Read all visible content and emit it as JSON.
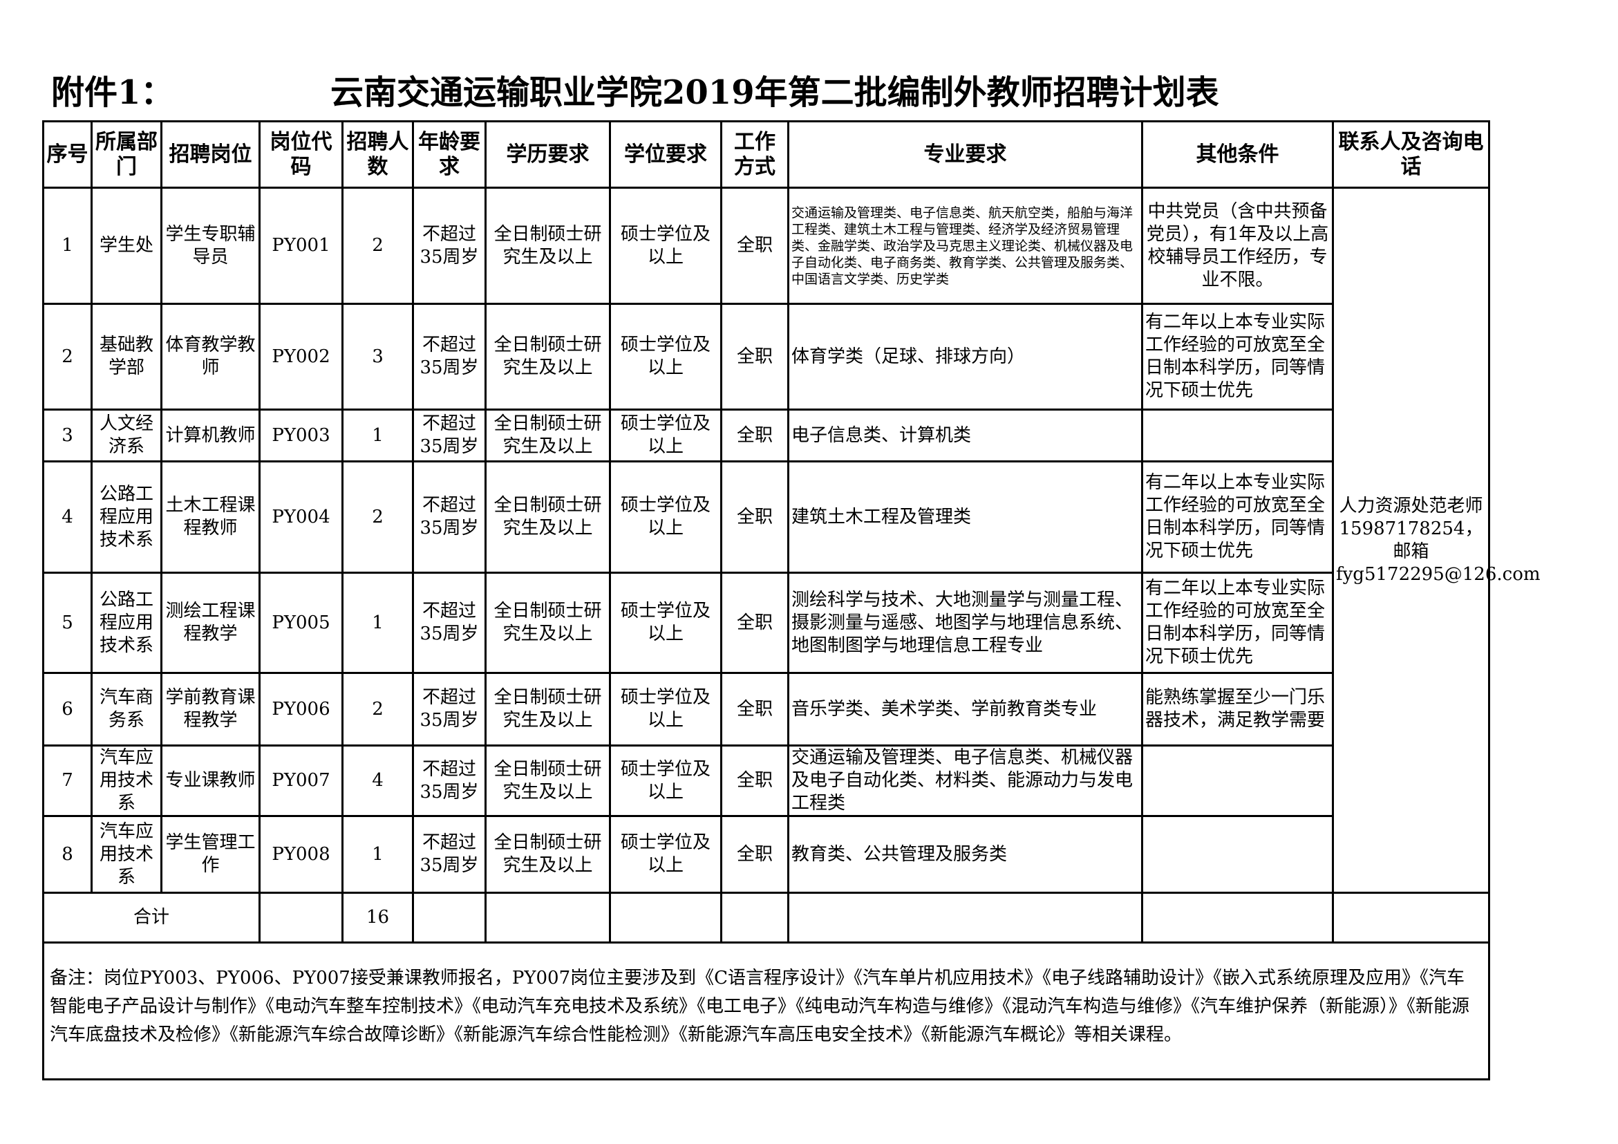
{
  "header": {
    "label": "附件1：",
    "title": "云南交通运输职业学院2019年第二批编制外教师招聘计划表"
  },
  "columns": [
    "序号",
    "所属部门",
    "招聘岗位",
    "岗位代码",
    "招聘人数",
    "年龄要求",
    "学历要求",
    "学位要求",
    "工作方式",
    "专业要求",
    "其他条件",
    "联系人及咨询电话"
  ],
  "rows": [
    {
      "no": "1",
      "dept": "学生处",
      "post": "学生专职辅导员",
      "code": "PY001",
      "count": "2",
      "age": "不超过35周岁",
      "edu": "全日制硕士研究生及以上",
      "degree": "硕士学位及以上",
      "mode": "全职",
      "major": "交通运输及管理类、电子信息类、航天航空类，船舶与海洋工程类、建筑土木工程与管理类、经济学及经济贸易管理类、金融学类、政治学及马克思主义理论类、机械仪器及电子自动化类、电子商务类、教育学类、公共管理及服务类、中国语言文学类、历史学类",
      "other": "中共党员（含中共预备党员），有1年及以上高校辅导员工作经历，专业不限。"
    },
    {
      "no": "2",
      "dept": "基础教学部",
      "post": "体育教学教师",
      "code": "PY002",
      "count": "3",
      "age": "不超过35周岁",
      "edu": "全日制硕士研究生及以上",
      "degree": "硕士学位及以上",
      "mode": "全职",
      "major": "体育学类（足球、排球方向）",
      "other": "有二年以上本专业实际工作经验的可放宽至全日制本科学历，同等情况下硕士优先"
    },
    {
      "no": "3",
      "dept": "人文经济系",
      "post": "计算机教师",
      "code": "PY003",
      "count": "1",
      "age": "不超过35周岁",
      "edu": "全日制硕士研究生及以上",
      "degree": "硕士学位及以上",
      "mode": "全职",
      "major": "电子信息类、计算机类",
      "other": ""
    },
    {
      "no": "4",
      "dept": "公路工程应用技术系",
      "post": "土木工程课程教师",
      "code": "PY004",
      "count": "2",
      "age": "不超过35周岁",
      "edu": "全日制硕士研究生及以上",
      "degree": "硕士学位及以上",
      "mode": "全职",
      "major": "建筑土木工程及管理类",
      "other": "有二年以上本专业实际工作经验的可放宽至全日制本科学历，同等情况下硕士优先"
    },
    {
      "no": "5",
      "dept": "公路工程应用技术系",
      "post": "测绘工程课程教学",
      "code": "PY005",
      "count": "1",
      "age": "不超过35周岁",
      "edu": "全日制硕士研究生及以上",
      "degree": "硕士学位及以上",
      "mode": "全职",
      "major": "测绘科学与技术、大地测量学与测量工程、摄影测量与遥感、地图学与地理信息系统、地图制图学与地理信息工程专业",
      "other": "有二年以上本专业实际工作经验的可放宽至全日制本科学历，同等情况下硕士优先"
    },
    {
      "no": "6",
      "dept": "汽车商务系",
      "post": "学前教育课程教学",
      "code": "PY006",
      "count": "2",
      "age": "不超过35周岁",
      "edu": "全日制硕士研究生及以上",
      "degree": "硕士学位及以上",
      "mode": "全职",
      "major": "音乐学类、美术学类、学前教育类专业",
      "other": "能熟练掌握至少一门乐器技术，满足教学需要"
    },
    {
      "no": "7",
      "dept": "汽车应用技术系",
      "post": "专业课教师",
      "code": "PY007",
      "count": "4",
      "age": "不超过35周岁",
      "edu": "全日制硕士研究生及以上",
      "degree": "硕士学位及以上",
      "mode": "全职",
      "major": "交通运输及管理类、电子信息类、机械仪器及电子自动化类、材料类、能源动力与发电工程类",
      "other": ""
    },
    {
      "no": "8",
      "dept": "汽车应用技术系",
      "post": "学生管理工作",
      "code": "PY008",
      "count": "1",
      "age": "不超过35周岁",
      "edu": "全日制硕士研究生及以上",
      "degree": "硕士学位及以上",
      "mode": "全职",
      "major": "教育类、公共管理及服务类",
      "other": ""
    }
  ],
  "contact": "人力资源处范老师15987178254，邮箱fyg5172295@126.com",
  "total": {
    "label": "合计",
    "count": "16"
  },
  "note": "备注：岗位PY003、PY006、PY007接受兼课教师报名，PY007岗位主要涉及到《C语言程序设计》《汽车单片机应用技术》《电子线路辅助设计》《嵌入式系统原理及应用》《汽车智能电子产品设计与制作》《电动汽车整车控制技术》《电动汽车充电技术及系统》《电工电子》《纯电动汽车构造与维修》《混动汽车构造与维修》《汽车维护保养（新能源）》《新能源汽车底盘技术及检修》《新能源汽车综合故障诊断》《新能源汽车综合性能检测》《新能源汽车高压电安全技术》《新能源汽车概论》等相关课程。"
}
